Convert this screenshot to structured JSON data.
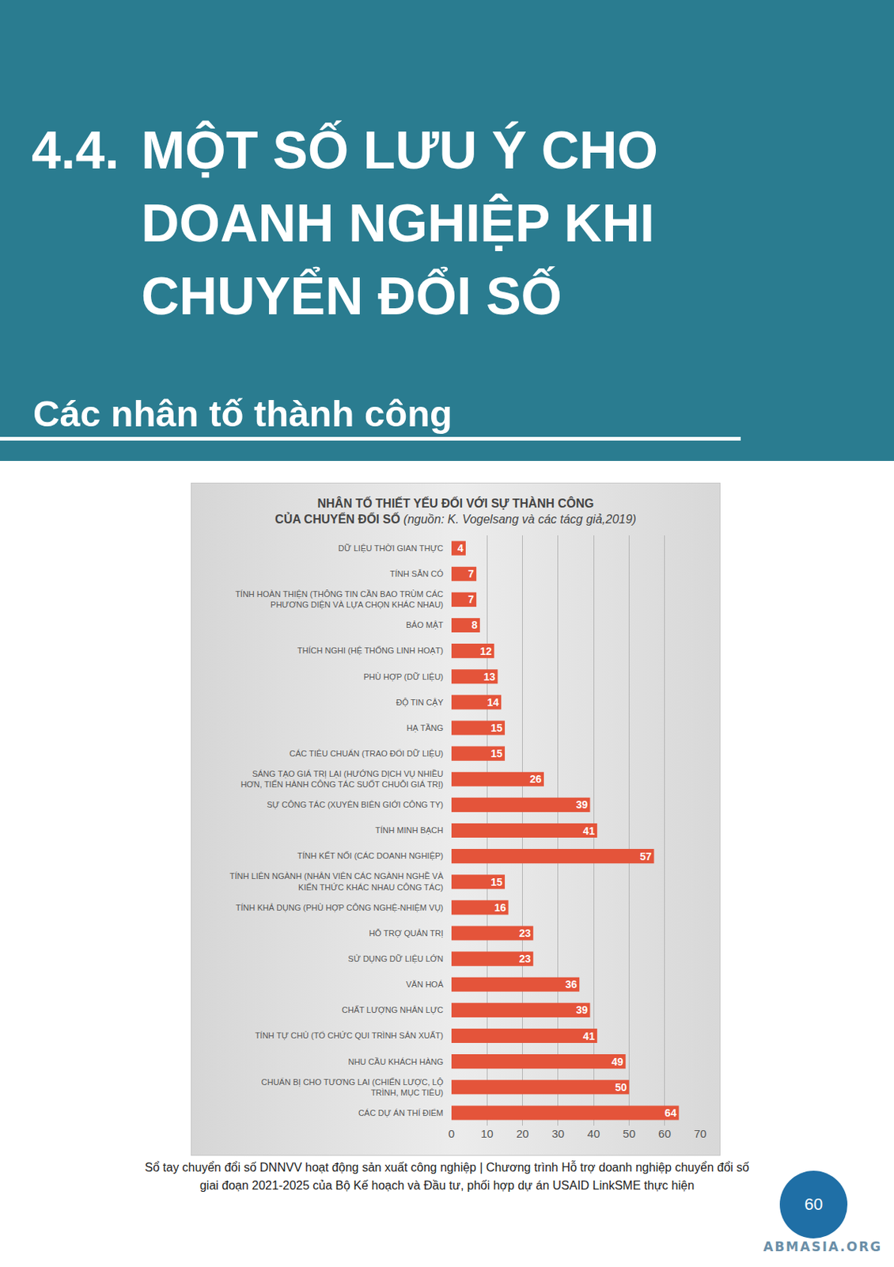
{
  "header": {
    "number": "4.4.",
    "title": [
      "MỘT SỐ LƯU Ý CHO",
      "DOANH NGHIỆP KHI",
      "CHUYỂN ĐỔI SỐ"
    ],
    "section": "Các nhân tố thành công"
  },
  "chart_data": {
    "type": "bar",
    "orientation": "horizontal",
    "title": "NHÂN TỐ THIẾT YẾU ĐỐI VỚI SỰ THÀNH CÔNG\nCỦA CHUYỂN ĐỔI SỐ",
    "subtitle": "(nguồn: K. Vogelsang và các tácg giả,2019)",
    "categories": [
      "DỮ LIỆU THỜI GIAN THỰC",
      "TÍNH SẴN CÓ",
      "TÍNH HOÀN THIỆN (THÔNG TIN CẦN BAO TRÙM CÁC PHƯƠNG DIỆN VÀ LỰA CHỌN KHÁC NHAU)",
      "BẢO MẬT",
      "THÍCH NGHI (HỆ THỐNG LINH HOẠT)",
      "PHÙ HỢP (DỮ LIỆU)",
      "ĐỘ TIN CẬY",
      "HẠ TẦNG",
      "CÁC TIÊU CHUẨN (TRAO ĐỔI DỮ LIỆU)",
      "SÁNG TẠO GIÁ TRỊ LẠI (HƯỚNG DỊCH VỤ NHIỀU HƠN, TIẾN HÀNH CÔNG TÁC SUỐT CHUỖI GIÁ TRỊ)",
      "SỰ CÔNG TÁC (XUYÊN BIÊN GIỚI CÔNG TY)",
      "TÍNH MINH BẠCH",
      "TÍNH KẾT NỐI (CÁC DOANH NGHIỆP)",
      "TÍNH LIÊN NGÀNH (NHÂN VIÊN CÁC NGÀNH NGHỀ VÀ KIẾN THỨC KHÁC NHAU CÔNG TÁC)",
      "TÍNH KHẢ DỤNG (PHÙ HỢP CÔNG NGHỆ-NHIỆM VỤ)",
      "HỖ TRỢ QUẢN TRỊ",
      "SỬ DỤNG DỮ LIỆU LỚN",
      "VĂN HOÁ",
      "CHẤT LƯỢNG NHÂN LỰC",
      "TÍNH TỰ CHỦ (TỔ CHỨC QUI TRÌNH SẢN XUẤT)",
      "NHU CẦU KHÁCH HÀNG",
      "CHUẨN BỊ CHO TƯƠNG LAI (CHIẾN LƯỢC, LỘ TRÌNH, MỤC TIÊU)",
      "CÁC DỰ ÁN THÍ ĐIỂM"
    ],
    "values": [
      4,
      7,
      7,
      8,
      12,
      13,
      14,
      15,
      15,
      26,
      39,
      41,
      57,
      15,
      16,
      23,
      23,
      36,
      39,
      41,
      49,
      50,
      64
    ],
    "color": "#e4543a",
    "xlim": [
      0,
      70
    ],
    "xticks": [
      0,
      10,
      20,
      30,
      40,
      50,
      60,
      70
    ],
    "grid": true,
    "data_labels": true
  },
  "footer": {
    "text": [
      "Sổ tay chuyển đổi số DNNVV hoạt động sản xuất công nghiệp | Chương trình Hỗ trợ doanh nghiệp chuyển đổi số",
      "giai đoạn 2021-2025 của Bộ Kế hoạch và Đầu tư, phối hợp dự án USAID LinkSME thực hiện"
    ],
    "page": 60,
    "watermark": "ABMASIA.ORG"
  }
}
